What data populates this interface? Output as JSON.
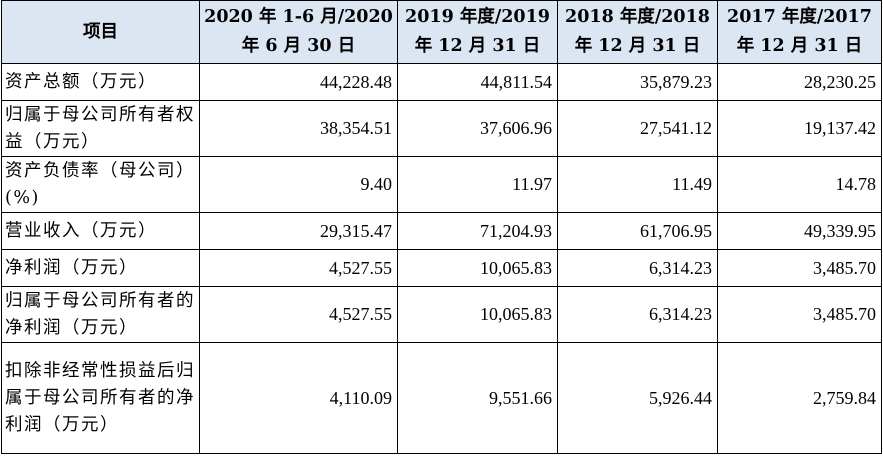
{
  "table": {
    "headers": [
      "项目",
      "2020 年 1-6 月/2020 年 6 月 30 日",
      "2019 年度/2019 年 12 月 31 日",
      "2018 年度/2018 年 12 月 31 日",
      "2017 年度/2017 年 12 月 31 日"
    ],
    "rows": [
      {
        "label": "资产总额（万元）",
        "values": [
          "44,228.48",
          "44,811.54",
          "35,879.23",
          "28,230.25"
        ]
      },
      {
        "label": "归属于母公司所有者权益（万元）",
        "values": [
          "38,354.51",
          "37,606.96",
          "27,541.12",
          "19,137.42"
        ]
      },
      {
        "label": "资产负债率（母公司）(%)",
        "values": [
          "9.40",
          "11.97",
          "11.49",
          "14.78"
        ]
      },
      {
        "label": "营业收入（万元）",
        "values": [
          "29,315.47",
          "71,204.93",
          "61,706.95",
          "49,339.95"
        ]
      },
      {
        "label": "净利润（万元）",
        "values": [
          "4,527.55",
          "10,065.83",
          "6,314.23",
          "3,485.70"
        ]
      },
      {
        "label": "归属于母公司所有者的净利润（万元）",
        "values": [
          "4,527.55",
          "10,065.83",
          "6,314.23",
          "3,485.70"
        ]
      },
      {
        "label": "扣除非经常性损益后归属于母公司所有者的净利润（万元）",
        "values": [
          "4,110.09",
          "9,551.66",
          "5,926.44",
          "2,759.84"
        ]
      }
    ]
  }
}
